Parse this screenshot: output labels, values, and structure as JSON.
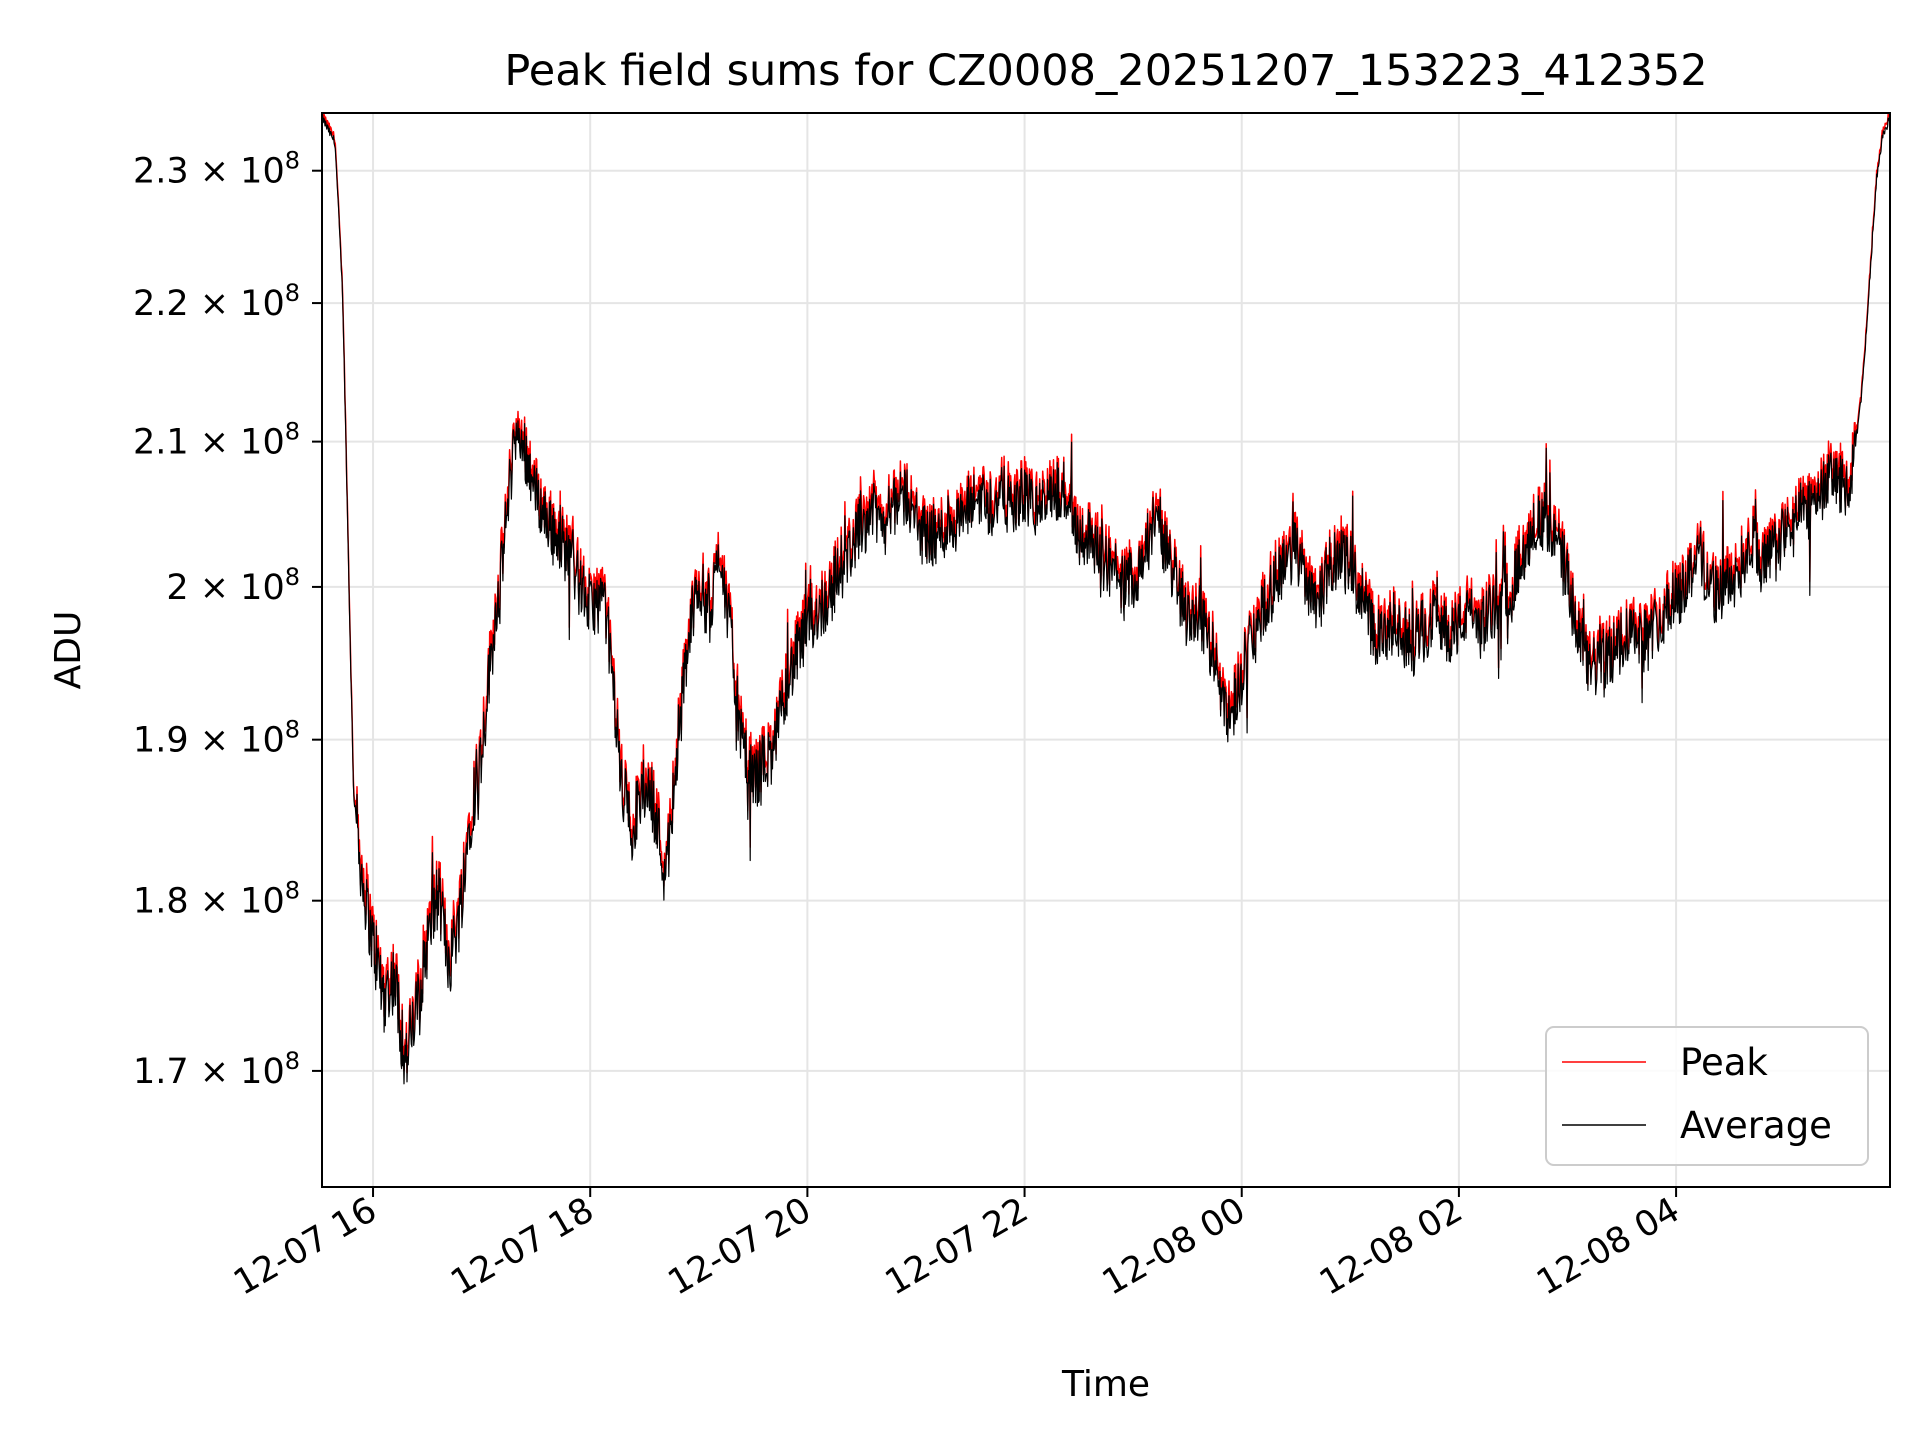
{
  "chart_data": {
    "type": "line",
    "title": "Peak field sums for CZ0008_20251207_153223_412352",
    "xlabel": "Time",
    "ylabel": "ADU",
    "y_scale": "log",
    "ylim": [
      163500000,
      234500000
    ],
    "xlim_hours": [
      15.53,
      29.97
    ],
    "grid": true,
    "legend_location": "lower right",
    "x_ticks": [
      {
        "hour": 16,
        "label": "12-07 16"
      },
      {
        "hour": 18,
        "label": "12-07 18"
      },
      {
        "hour": 20,
        "label": "12-07 20"
      },
      {
        "hour": 22,
        "label": "12-07 22"
      },
      {
        "hour": 24,
        "label": "12-08 00"
      },
      {
        "hour": 26,
        "label": "12-08 02"
      },
      {
        "hour": 28,
        "label": "12-08 04"
      }
    ],
    "y_ticks": [
      {
        "value": 170000000,
        "mantissa": "1.7"
      },
      {
        "value": 180000000,
        "mantissa": "1.8"
      },
      {
        "value": 190000000,
        "mantissa": "1.9"
      },
      {
        "value": 200000000,
        "mantissa": "2"
      },
      {
        "value": 210000000,
        "mantissa": "2.1"
      },
      {
        "value": 220000000,
        "mantissa": "2.2"
      },
      {
        "value": 230000000,
        "mantissa": "2.3"
      }
    ],
    "y_tick_base": "10",
    "y_tick_exponent": "8",
    "y_tick_times": "×",
    "series": [
      {
        "name": "Peak",
        "color": "#ff0000",
        "points": [
          [
            15.53,
            234.5
          ],
          [
            15.65,
            232.5
          ],
          [
            15.72,
            221.0
          ],
          [
            15.78,
            200.0
          ],
          [
            15.82,
            187.0
          ],
          [
            15.9,
            182.0
          ],
          [
            16.0,
            178.0
          ],
          [
            16.1,
            175.0
          ],
          [
            16.2,
            176.0
          ],
          [
            16.3,
            171.0
          ],
          [
            16.4,
            174.0
          ],
          [
            16.5,
            178.0
          ],
          [
            16.6,
            181.0
          ],
          [
            16.7,
            177.0
          ],
          [
            16.8,
            180.0
          ],
          [
            16.9,
            186.0
          ],
          [
            17.0,
            190.0
          ],
          [
            17.1,
            197.0
          ],
          [
            17.2,
            203.0
          ],
          [
            17.3,
            211.0
          ],
          [
            17.4,
            210.0
          ],
          [
            17.5,
            207.0
          ],
          [
            17.6,
            205.0
          ],
          [
            17.7,
            204.0
          ],
          [
            17.8,
            203.0
          ],
          [
            17.9,
            201.0
          ],
          [
            18.0,
            199.0
          ],
          [
            18.1,
            200.0
          ],
          [
            18.15,
            198.5
          ],
          [
            18.2,
            195.0
          ],
          [
            18.3,
            187.0
          ],
          [
            18.4,
            185.0
          ],
          [
            18.5,
            188.0
          ],
          [
            18.6,
            186.0
          ],
          [
            18.7,
            182.0
          ],
          [
            18.8,
            190.0
          ],
          [
            18.9,
            197.0
          ],
          [
            19.0,
            201.0
          ],
          [
            19.1,
            199.0
          ],
          [
            19.2,
            203.0
          ],
          [
            19.3,
            197.0
          ],
          [
            19.4,
            190.0
          ],
          [
            19.5,
            188.0
          ],
          [
            19.6,
            189.0
          ],
          [
            19.7,
            190.0
          ],
          [
            19.8,
            194.0
          ],
          [
            19.9,
            196.0
          ],
          [
            20.0,
            198.0
          ],
          [
            20.1,
            199.0
          ],
          [
            20.2,
            200.0
          ],
          [
            20.3,
            202.0
          ],
          [
            20.4,
            203.0
          ],
          [
            20.5,
            205.0
          ],
          [
            20.6,
            206.0
          ],
          [
            20.7,
            205.0
          ],
          [
            20.8,
            206.0
          ],
          [
            20.9,
            207.0
          ],
          [
            21.0,
            205.0
          ],
          [
            21.1,
            204.0
          ],
          [
            21.2,
            204.0
          ],
          [
            21.3,
            205.0
          ],
          [
            21.4,
            205.0
          ],
          [
            21.5,
            206.0
          ],
          [
            21.6,
            207.0
          ],
          [
            21.7,
            206.0
          ],
          [
            21.8,
            207.0
          ],
          [
            21.9,
            206.0
          ],
          [
            22.0,
            207.0
          ],
          [
            22.1,
            206.0
          ],
          [
            22.2,
            206.5
          ],
          [
            22.3,
            207.0
          ],
          [
            22.4,
            207.0
          ],
          [
            22.5,
            204.0
          ],
          [
            22.6,
            204.0
          ],
          [
            22.7,
            203.0
          ],
          [
            22.8,
            202.0
          ],
          [
            22.9,
            200.5
          ],
          [
            23.0,
            201.0
          ],
          [
            23.1,
            203.0
          ],
          [
            23.2,
            205.0
          ],
          [
            23.3,
            203.0
          ],
          [
            23.4,
            201.0
          ],
          [
            23.5,
            198.5
          ],
          [
            23.6,
            199.0
          ],
          [
            23.7,
            197.0
          ],
          [
            23.8,
            194.0
          ],
          [
            23.9,
            192.0
          ],
          [
            24.0,
            195.0
          ],
          [
            24.1,
            197.0
          ],
          [
            24.2,
            199.0
          ],
          [
            24.3,
            201.0
          ],
          [
            24.4,
            202.5
          ],
          [
            24.5,
            203.0
          ],
          [
            24.6,
            201.0
          ],
          [
            24.7,
            200.0
          ],
          [
            24.8,
            201.0
          ],
          [
            24.9,
            203.0
          ],
          [
            25.0,
            202.0
          ],
          [
            25.1,
            200.0
          ],
          [
            25.2,
            198.0
          ],
          [
            25.3,
            197.0
          ],
          [
            25.4,
            198.0
          ],
          [
            25.5,
            197.0
          ],
          [
            25.6,
            197.0
          ],
          [
            25.7,
            198.0
          ],
          [
            25.8,
            199.0
          ],
          [
            25.9,
            197.5
          ],
          [
            26.0,
            198.0
          ],
          [
            26.1,
            199.0
          ],
          [
            26.2,
            198.0
          ],
          [
            26.3,
            199.0
          ],
          [
            26.4,
            200.0
          ],
          [
            26.5,
            201.0
          ],
          [
            26.6,
            203.0
          ],
          [
            26.7,
            205.0
          ],
          [
            26.8,
            205.0
          ],
          [
            26.9,
            204.0
          ],
          [
            27.0,
            201.0
          ],
          [
            27.1,
            197.0
          ],
          [
            27.2,
            195.0
          ],
          [
            27.3,
            196.0
          ],
          [
            27.4,
            196.0
          ],
          [
            27.5,
            197.0
          ],
          [
            27.6,
            198.0
          ],
          [
            27.7,
            197.0
          ],
          [
            27.8,
            198.0
          ],
          [
            27.9,
            199.0
          ],
          [
            28.0,
            200.0
          ],
          [
            28.1,
            201.0
          ],
          [
            28.2,
            203.0
          ],
          [
            28.3,
            201.0
          ],
          [
            28.4,
            200.0
          ],
          [
            28.5,
            201.0
          ],
          [
            28.6,
            202.0
          ],
          [
            28.7,
            204.0
          ],
          [
            28.8,
            202.0
          ],
          [
            28.9,
            203.0
          ],
          [
            29.0,
            204.0
          ],
          [
            29.1,
            205.0
          ],
          [
            29.2,
            206.0
          ],
          [
            29.3,
            207.0
          ],
          [
            29.4,
            208.0
          ],
          [
            29.5,
            208.0
          ],
          [
            29.6,
            207.0
          ],
          [
            29.7,
            213.0
          ],
          [
            29.75,
            218.0
          ],
          [
            29.8,
            224.0
          ],
          [
            29.85,
            230.0
          ],
          [
            29.9,
            233.0
          ],
          [
            29.97,
            234.5
          ]
        ]
      },
      {
        "name": "Average",
        "color": "#000000",
        "offset": -0.3
      }
    ]
  }
}
